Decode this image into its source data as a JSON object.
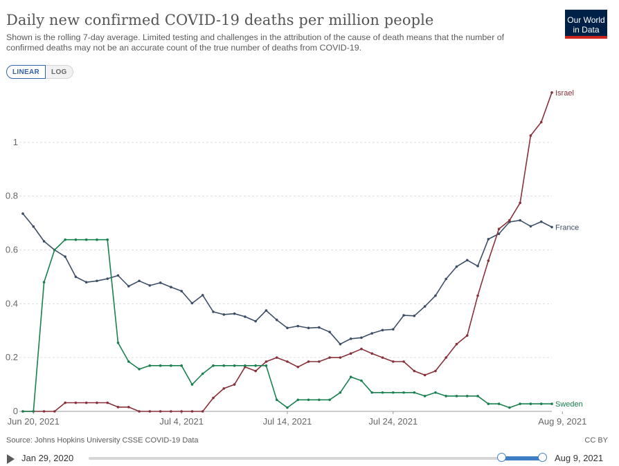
{
  "header": {
    "title": "Daily new confirmed COVID-19 deaths per million people",
    "subtitle": "Shown is the rolling 7-day average. Limited testing and challenges in the attribution of the cause of death means that the number of confirmed deaths may not be an accurate count of the true number of deaths from COVID-19.",
    "logo_line1": "Our World",
    "logo_line2": "in Data"
  },
  "controls": {
    "linear_label": "LINEAR",
    "log_label": "LOG"
  },
  "footer": {
    "source": "Source: Johns Hopkins University CSSE COVID-19 Data",
    "license": "CC BY"
  },
  "timeline": {
    "start_label": "Jan 29, 2020",
    "end_label": "Aug 9, 2021",
    "selection_start": 0.91,
    "selection_end": 1.0
  },
  "colors": {
    "France": "#3c4e66",
    "Israel": "#883039",
    "Sweden": "#18804f",
    "grid": "#dddddd",
    "axis_text": "#666666"
  },
  "chart_data": {
    "type": "line",
    "title": "Daily new confirmed COVID-19 deaths per million people",
    "xlabel": "",
    "ylabel": "",
    "x_start": "2021-06-19",
    "x_end": "2021-08-09",
    "xlim": [
      "2021-06-19",
      "2021-08-09"
    ],
    "ylim": [
      0,
      1.2
    ],
    "yticks": [
      0,
      0.2,
      0.4,
      0.6,
      0.8,
      1
    ],
    "ytick_labels": [
      "0",
      "0.2",
      "0.4",
      "0.6",
      "0.8",
      "1"
    ],
    "xticks": [
      "2021-06-20",
      "2021-07-04",
      "2021-07-14",
      "2021-07-24",
      "2021-08-09"
    ],
    "xtick_labels": [
      "Jun 20, 2021",
      "Jul 4, 2021",
      "Jul 14, 2021",
      "Jul 24, 2021",
      "Aug 9, 2021"
    ],
    "grid": true,
    "legend": "end-of-line labels",
    "series": [
      {
        "name": "France",
        "values": [
          0.735,
          0.687,
          0.632,
          0.6,
          0.575,
          0.5,
          0.48,
          0.485,
          0.493,
          0.505,
          0.465,
          0.485,
          0.468,
          0.478,
          0.462,
          0.447,
          0.402,
          0.432,
          0.37,
          0.36,
          0.363,
          0.352,
          0.335,
          0.375,
          0.34,
          0.31,
          0.317,
          0.31,
          0.312,
          0.295,
          0.25,
          0.27,
          0.274,
          0.29,
          0.302,
          0.305,
          0.357,
          0.355,
          0.39,
          0.43,
          0.492,
          0.538,
          0.562,
          0.54,
          0.64,
          0.66,
          0.704,
          0.71,
          0.688,
          0.705,
          0.685
        ]
      },
      {
        "name": "Israel",
        "values": [
          0,
          0,
          0,
          0,
          0.032,
          0.032,
          0.032,
          0.032,
          0.032,
          0.016,
          0.016,
          0,
          0,
          0,
          0,
          0,
          0,
          0,
          0.05,
          0.085,
          0.1,
          0.165,
          0.15,
          0.185,
          0.2,
          0.185,
          0.165,
          0.185,
          0.185,
          0.2,
          0.2,
          0.215,
          0.232,
          0.215,
          0.2,
          0.185,
          0.185,
          0.15,
          0.135,
          0.15,
          0.2,
          0.25,
          0.282,
          0.43,
          0.56,
          0.678,
          0.71,
          0.775,
          1.025,
          1.075,
          1.185
        ]
      },
      {
        "name": "Sweden",
        "values": [
          0,
          0,
          0.48,
          0.6,
          0.638,
          0.638,
          0.638,
          0.638,
          0.638,
          0.255,
          0.185,
          0.157,
          0.17,
          0.17,
          0.17,
          0.17,
          0.1,
          0.14,
          0.17,
          0.17,
          0.17,
          0.17,
          0.17,
          0.17,
          0.043,
          0.014,
          0.043,
          0.043,
          0.043,
          0.043,
          0.07,
          0.128,
          0.114,
          0.07,
          0.07,
          0.07,
          0.07,
          0.07,
          0.057,
          0.07,
          0.057,
          0.057,
          0.057,
          0.057,
          0.028,
          0.028,
          0.014,
          0.028,
          0.028,
          0.028,
          0.028
        ]
      }
    ]
  }
}
